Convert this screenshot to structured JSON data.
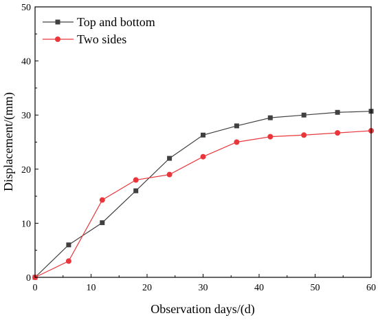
{
  "chart_data": {
    "type": "line",
    "title": "",
    "xlabel": "Observation days/(d)",
    "ylabel": "Displacement/(mm)",
    "xlim": [
      0,
      60
    ],
    "ylim": [
      0,
      50
    ],
    "xticks": [
      0,
      10,
      20,
      30,
      40,
      50,
      60
    ],
    "yticks": [
      0,
      10,
      20,
      30,
      40,
      50
    ],
    "grid": false,
    "legend_position": "top-left",
    "x": [
      0,
      6,
      12,
      18,
      24,
      30,
      36,
      42,
      48,
      54,
      60
    ],
    "series": [
      {
        "name": "Top and bottom",
        "color": "#404040",
        "marker": "square",
        "values": [
          0,
          6.0,
          10.1,
          16.0,
          22.0,
          26.3,
          28.0,
          29.5,
          30.0,
          30.5,
          30.7
        ]
      },
      {
        "name": "Two sides",
        "color": "#e8363b",
        "marker": "circle",
        "values": [
          0,
          3.0,
          14.3,
          18.0,
          19.0,
          22.3,
          25.0,
          26.0,
          26.3,
          26.7,
          27.1
        ]
      }
    ]
  }
}
